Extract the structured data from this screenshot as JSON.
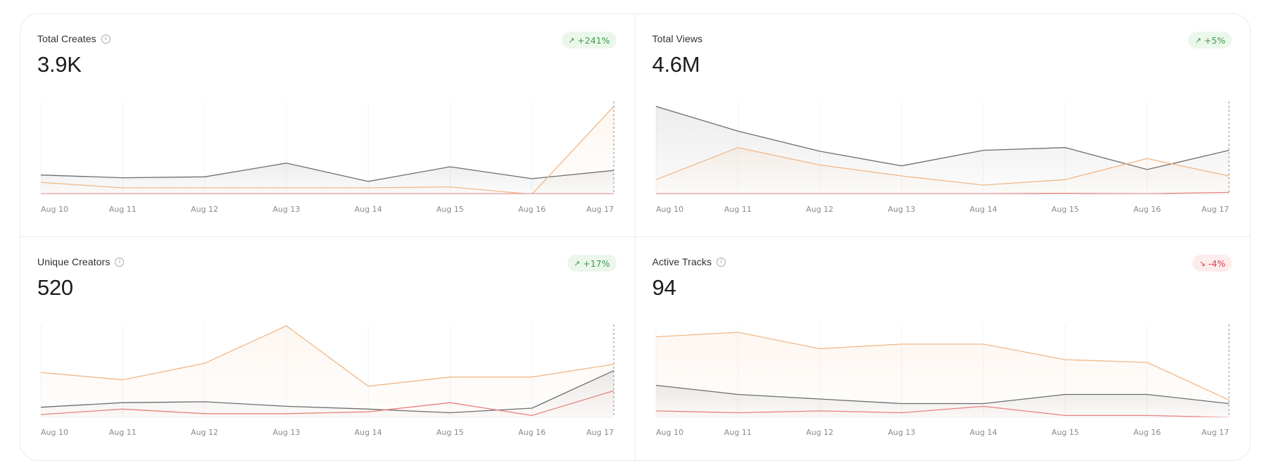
{
  "cards": [
    {
      "title": "Total Creates",
      "info_icon": true,
      "value": "3.9K",
      "badge": {
        "text": "+241%",
        "direction": "up",
        "icon": "arrow-up-right-icon"
      }
    },
    {
      "title": "Total Views",
      "info_icon": false,
      "value": "4.6M",
      "badge": {
        "text": "+5%",
        "direction": "up",
        "icon": "arrow-up-right-icon"
      }
    },
    {
      "title": "Unique Creators",
      "info_icon": true,
      "value": "520",
      "badge": {
        "text": "+17%",
        "direction": "up",
        "icon": "arrow-up-right-icon"
      }
    },
    {
      "title": "Active Tracks",
      "info_icon": true,
      "value": "94",
      "badge": {
        "text": "-4%",
        "direction": "down",
        "icon": "arrow-down-right-icon"
      }
    }
  ],
  "colors": {
    "dark_series": "#6e6e6e",
    "orange_series": "#f0b888",
    "red_series": "#e8827e",
    "badge_up_bg": "#ecf7ec",
    "badge_up_text": "#3c9a4a",
    "badge_down_bg": "#fdecec",
    "badge_down_text": "#d1414d"
  },
  "chart_data": [
    {
      "type": "area",
      "categories": [
        "Aug 10",
        "Aug 11",
        "Aug 12",
        "Aug 13",
        "Aug 14",
        "Aug 15",
        "Aug 16",
        "Aug 17"
      ],
      "ylim": [
        0,
        100
      ],
      "grid": true,
      "series": [
        {
          "values": [
            21,
            18,
            19,
            34,
            14,
            30,
            17,
            26
          ],
          "color": "dark"
        },
        {
          "values": [
            13,
            7,
            7,
            7,
            7,
            8,
            0,
            96
          ],
          "color": "orange"
        },
        {
          "values": [
            0.5,
            0.5,
            0.5,
            0.5,
            0.5,
            0.5,
            0.5,
            0.5
          ],
          "color": "red"
        }
      ]
    },
    {
      "type": "area",
      "categories": [
        "Aug 10",
        "Aug 11",
        "Aug 12",
        "Aug 13",
        "Aug 14",
        "Aug 15",
        "Aug 16",
        "Aug 17"
      ],
      "ylim": [
        0,
        100
      ],
      "grid": true,
      "series": [
        {
          "values": [
            96,
            69,
            47,
            31,
            48,
            51,
            27,
            48
          ],
          "color": "dark"
        },
        {
          "values": [
            16,
            51,
            32,
            20,
            10,
            16,
            39,
            20
          ],
          "color": "orange"
        },
        {
          "values": [
            0.5,
            0.5,
            0.5,
            0.5,
            0.5,
            1,
            0.5,
            2
          ],
          "color": "red"
        }
      ]
    },
    {
      "type": "area",
      "categories": [
        "Aug 10",
        "Aug 11",
        "Aug 12",
        "Aug 13",
        "Aug 14",
        "Aug 15",
        "Aug 16",
        "Aug 17"
      ],
      "ylim": [
        0,
        100
      ],
      "grid": true,
      "series": [
        {
          "values": [
            49,
            41,
            59,
            100,
            34,
            44,
            44,
            58
          ],
          "color": "orange"
        },
        {
          "values": [
            11,
            16,
            17,
            12,
            9,
            5,
            10,
            51
          ],
          "color": "dark"
        },
        {
          "values": [
            3,
            9,
            4,
            4,
            6,
            16,
            2,
            29
          ],
          "color": "red"
        }
      ]
    },
    {
      "type": "area",
      "categories": [
        "Aug 10",
        "Aug 11",
        "Aug 12",
        "Aug 13",
        "Aug 14",
        "Aug 15",
        "Aug 16",
        "Aug 17"
      ],
      "ylim": [
        0,
        100
      ],
      "grid": true,
      "series": [
        {
          "values": [
            88,
            93,
            75,
            80,
            80,
            63,
            60,
            19
          ],
          "color": "orange"
        },
        {
          "values": [
            35,
            25,
            20,
            15,
            15,
            25,
            25,
            15
          ],
          "color": "dark"
        },
        {
          "values": [
            7,
            5,
            7,
            5,
            12,
            2,
            2,
            0
          ],
          "color": "red"
        }
      ]
    }
  ]
}
